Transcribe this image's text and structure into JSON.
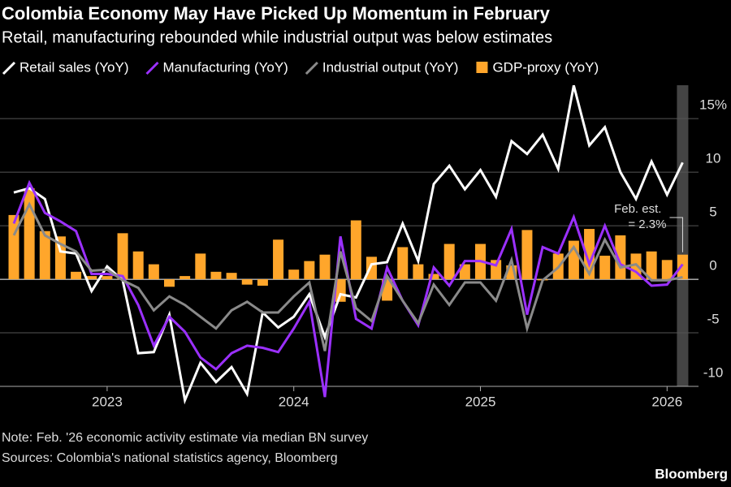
{
  "chart_data": {
    "type": "line",
    "title": "Colombia Economy May Have Picked Up Momentum in February",
    "subtitle": "Retail, manufacturing rebounded while industrial output was below estimates",
    "note": "Note: Feb. '26 economic activity estimate via median BN survey",
    "source": "Sources: Colombia's national statistics agency, Bloomberg",
    "brand": "Bloomberg",
    "annotation": [
      "Feb. est.",
      "= 2.3%"
    ],
    "categories": [
      null,
      null,
      null,
      null,
      null,
      null,
      "2023",
      null,
      null,
      null,
      null,
      null,
      null,
      null,
      null,
      null,
      null,
      null,
      "2024",
      null,
      null,
      null,
      null,
      null,
      null,
      null,
      null,
      null,
      null,
      null,
      "2025",
      null,
      null,
      null,
      null,
      null,
      null,
      null,
      null,
      null,
      null,
      null,
      "2026",
      null
    ],
    "ylim": [
      -10,
      18.5
    ],
    "yticks": [
      {
        "value": 15,
        "label": "15%"
      },
      10,
      5,
      0,
      -5,
      -10
    ],
    "grid": true,
    "series": [
      {
        "name": "Retail sales (YoY)",
        "color": "#ffffff",
        "type": "line",
        "values": [
          8.1,
          8.5,
          7.5,
          2.6,
          2.4,
          -1.1,
          1.2,
          -0.1,
          -6.9,
          -6.8,
          -3.3,
          -11.3,
          -7.8,
          -9.6,
          -8.2,
          -10.7,
          -3.1,
          -4.5,
          -3.5,
          -1.4,
          -5.4,
          -1.4,
          -1.7,
          1.4,
          1.6,
          5.2,
          1.7,
          8.9,
          10.6,
          8.4,
          10.2,
          7.7,
          12.9,
          11.7,
          13.5,
          10.3,
          18.1,
          12.5,
          14.2,
          10.0,
          7.5,
          11.0,
          7.9,
          10.9
        ]
      },
      {
        "name": "Manufacturing (YoY)",
        "color": "#9b30ff",
        "type": "line",
        "values": [
          5.2,
          9.0,
          6.2,
          5.4,
          4.5,
          0.5,
          0.5,
          0.3,
          -2.4,
          -6.2,
          -3.5,
          -4.9,
          -7.3,
          -8.4,
          -6.9,
          -6.2,
          -6.4,
          -6.8,
          -4.6,
          -2.1,
          -11.0,
          4.0,
          -3.7,
          -4.6,
          1.1,
          -2.0,
          -4.3,
          1.1,
          -0.6,
          1.7,
          1.7,
          1.3,
          4.7,
          -3.3,
          3.0,
          2.4,
          5.8,
          1.4,
          5.0,
          1.4,
          0.7,
          -0.6,
          -0.5,
          1.4
        ]
      },
      {
        "name": "Industrial output (YoY)",
        "color": "#8a8a8a",
        "type": "line",
        "values": [
          4.1,
          7.0,
          4.1,
          3.3,
          2.6,
          0.8,
          0.9,
          -0.1,
          -0.8,
          -2.9,
          -1.6,
          -2.4,
          -3.5,
          -4.6,
          -2.9,
          -2.1,
          -3.1,
          -3.1,
          -1.6,
          -0.3,
          -6.7,
          2.6,
          -2.7,
          -3.9,
          0.3,
          -2.0,
          -4.1,
          -0.5,
          -2.4,
          -0.3,
          -0.3,
          -2.0,
          1.8,
          -4.6,
          -0.1,
          1.1,
          3.0,
          0.5,
          3.7,
          1.1,
          1.4,
          -0.1,
          -0.1,
          0.2
        ]
      },
      {
        "name": "GDP-proxy (YoY)",
        "color": "#ffa62b",
        "type": "bar",
        "values": [
          6.0,
          8.5,
          4.5,
          4.0,
          0.7,
          0.3,
          0.3,
          4.3,
          2.6,
          1.4,
          -0.7,
          0.3,
          2.4,
          0.7,
          0.6,
          -0.5,
          -0.6,
          3.7,
          0.9,
          1.7,
          2.3,
          -2.1,
          5.5,
          2.1,
          -2.0,
          3.0,
          1.4,
          0.5,
          3.3,
          1.4,
          3.3,
          1.8,
          1.3,
          4.6,
          -0.1,
          2.4,
          3.6,
          4.7,
          2.2,
          4.1,
          2.4,
          2.6,
          1.8,
          2.3
        ]
      }
    ]
  }
}
